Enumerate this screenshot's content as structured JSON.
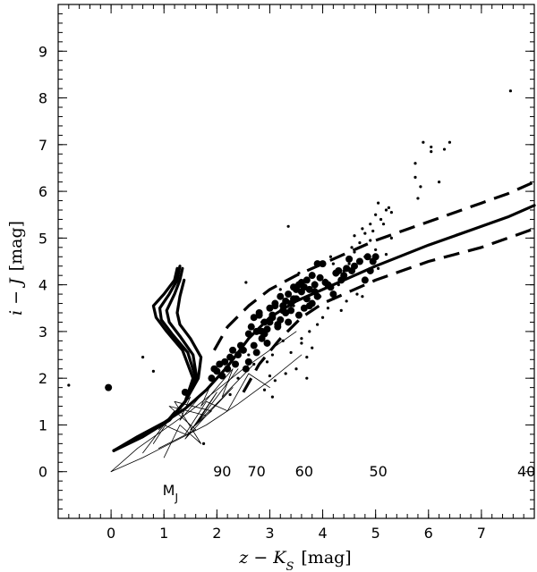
{
  "chart_data": {
    "type": "scatter",
    "title": "",
    "xlabel_main": "z  −  K",
    "xlabel_sub": "S",
    "xlabel_unit": "[mag]",
    "ylabel_main": "i  −  J",
    "ylabel_unit": "[mag]",
    "xlim": [
      -1,
      8
    ],
    "ylim": [
      -1,
      10
    ],
    "xticks": [
      0,
      1,
      2,
      3,
      4,
      5,
      6,
      7
    ],
    "yticks": [
      0,
      1,
      2,
      3,
      4,
      5,
      6,
      7,
      8,
      9
    ],
    "legend": "none",
    "annotations": [
      {
        "text": "M",
        "sub": "J",
        "x": 1.12,
        "y": -0.5
      },
      {
        "text": "90",
        "x": 2.1,
        "y": -0.1
      },
      {
        "text": "70",
        "x": 2.75,
        "y": -0.1
      },
      {
        "text": "60",
        "x": 3.65,
        "y": -0.1
      },
      {
        "text": "50",
        "x": 5.05,
        "y": -0.1
      },
      {
        "text": "40",
        "x": 7.85,
        "y": -0.1
      }
    ],
    "series": [
      {
        "style": "thick-solid",
        "x": [
          0.05,
          0.5,
          1.0,
          1.4,
          1.8,
          2.2,
          2.6,
          3.0,
          3.5,
          4.0,
          4.5,
          5.0,
          6.0,
          7.0,
          7.5,
          8.0
        ],
        "y": [
          0.45,
          0.75,
          1.05,
          1.35,
          1.75,
          2.25,
          2.85,
          3.3,
          3.65,
          3.9,
          4.15,
          4.4,
          4.85,
          5.25,
          5.45,
          5.7
        ]
      },
      {
        "style": "thick-dashed",
        "x": [
          1.95,
          2.2,
          2.6,
          3.0,
          3.5,
          4.0,
          4.5,
          5.0,
          6.0,
          7.0,
          7.5,
          8.0
        ],
        "y": [
          2.6,
          3.1,
          3.55,
          3.9,
          4.2,
          4.45,
          4.7,
          4.95,
          5.35,
          5.75,
          5.95,
          6.2
        ]
      },
      {
        "style": "thick-dashed",
        "x": [
          2.5,
          2.8,
          3.2,
          3.6,
          4.0,
          4.5,
          5.0,
          6.0,
          7.0,
          7.5,
          8.0
        ],
        "y": [
          1.7,
          2.3,
          2.85,
          3.3,
          3.6,
          3.85,
          4.1,
          4.5,
          4.8,
          5.0,
          5.2
        ]
      },
      {
        "style": "thick-solid",
        "x": [
          0.05,
          0.6,
          1.1,
          1.4,
          1.55,
          1.35,
          1.05,
          0.85,
          0.8,
          1.0,
          1.2,
          1.25
        ],
        "y": [
          0.45,
          0.75,
          1.1,
          1.5,
          2.0,
          2.6,
          3.0,
          3.3,
          3.55,
          3.8,
          4.1,
          4.35
        ]
      },
      {
        "style": "thick-solid",
        "x": [
          0.05,
          0.6,
          1.1,
          1.4,
          1.6,
          1.45,
          1.15,
          0.95,
          0.92,
          1.1,
          1.25,
          1.3
        ],
        "y": [
          0.45,
          0.75,
          1.1,
          1.5,
          2.0,
          2.55,
          2.95,
          3.25,
          3.5,
          3.8,
          4.1,
          4.4
        ]
      },
      {
        "style": "thick-solid",
        "x": [
          0.05,
          0.6,
          1.1,
          1.4,
          1.62,
          1.55,
          1.3,
          1.1,
          1.05,
          1.2,
          1.3,
          1.35
        ],
        "y": [
          0.45,
          0.75,
          1.1,
          1.5,
          2.0,
          2.5,
          2.9,
          3.2,
          3.45,
          3.8,
          4.1,
          4.35
        ]
      },
      {
        "style": "thick-solid",
        "x": [
          0.05,
          0.6,
          1.1,
          1.4,
          1.65,
          1.7,
          1.5,
          1.3,
          1.25,
          1.3,
          1.38
        ],
        "y": [
          0.45,
          0.75,
          1.1,
          1.5,
          2.0,
          2.45,
          2.85,
          3.15,
          3.4,
          3.75,
          4.1
        ]
      },
      {
        "style": "thin-solid",
        "x": [
          0.0,
          0.5,
          1.0,
          1.5,
          2.0,
          2.5,
          3.0,
          3.5
        ],
        "y": [
          0.0,
          0.5,
          0.9,
          1.3,
          1.75,
          2.2,
          2.6,
          3.0
        ]
      },
      {
        "style": "thin-solid",
        "x": [
          0.0,
          0.6,
          1.2,
          1.8,
          2.4,
          3.0,
          3.6
        ],
        "y": [
          0.0,
          0.3,
          0.65,
          1.0,
          1.45,
          1.95,
          2.5
        ]
      },
      {
        "style": "thin-solid",
        "x": [
          0.6,
          1.0,
          1.4,
          1.8,
          2.2,
          2.6,
          3.0
        ],
        "y": [
          0.4,
          1.0,
          0.8,
          1.5,
          1.3,
          2.1,
          1.8
        ]
      },
      {
        "style": "thin-solid",
        "x": [
          0.8,
          1.2,
          0.9,
          1.5,
          1.3,
          1.9,
          1.7,
          2.3,
          2.1,
          2.7
        ],
        "y": [
          0.6,
          1.3,
          0.9,
          1.6,
          1.1,
          1.9,
          1.4,
          2.2,
          1.6,
          2.3
        ]
      },
      {
        "style": "thin-solid",
        "x": [
          0.9,
          1.6,
          1.1,
          1.8,
          1.4,
          2.0,
          1.6,
          2.4
        ],
        "y": [
          0.5,
          0.9,
          1.4,
          1.2,
          0.7,
          1.7,
          1.0,
          2.2
        ]
      },
      {
        "style": "thin-solid",
        "x": [
          1.0,
          1.3,
          1.7,
          1.2,
          1.9,
          1.5,
          2.3,
          1.8
        ],
        "y": [
          0.3,
          1.0,
          0.6,
          1.5,
          1.3,
          0.9,
          1.8,
          1.2
        ]
      },
      {
        "style": "large-points",
        "x": [
          1.4,
          1.9,
          1.95,
          2.0,
          2.05,
          2.1,
          2.15,
          2.2,
          2.25,
          2.3,
          2.35,
          2.4,
          2.45,
          2.5,
          2.55,
          2.6,
          2.65,
          2.7,
          2.75,
          2.8,
          2.85,
          2.9,
          2.95,
          3.0,
          3.05,
          3.1,
          3.15,
          3.2,
          3.25,
          3.3,
          3.35,
          3.4,
          3.45,
          3.5,
          3.55,
          3.6,
          3.65,
          3.7,
          3.75,
          3.8,
          3.85,
          3.9,
          3.95,
          4.0,
          4.1,
          4.2,
          4.3,
          4.4,
          4.5,
          4.6,
          4.7,
          4.8,
          4.85,
          4.9,
          4.95,
          5.0,
          2.6,
          2.7,
          2.8,
          2.9,
          3.0,
          3.1,
          3.2,
          3.3,
          3.4,
          3.5,
          3.6,
          3.7,
          3.8,
          3.9,
          2.75,
          2.85,
          2.95,
          3.05,
          3.15,
          3.25,
          3.35,
          3.45,
          3.55,
          3.65,
          3.75,
          3.85,
          4.05,
          4.15,
          4.25,
          4.35,
          4.45,
          4.55,
          -0.05
        ],
        "y": [
          1.7,
          2.0,
          2.2,
          2.15,
          2.3,
          2.05,
          2.35,
          2.2,
          2.45,
          2.6,
          2.3,
          2.5,
          2.7,
          2.6,
          2.2,
          2.95,
          3.1,
          3.3,
          3.0,
          3.4,
          2.85,
          3.2,
          3.05,
          3.5,
          3.35,
          3.6,
          3.15,
          3.75,
          3.55,
          3.4,
          3.8,
          3.6,
          3.95,
          3.7,
          4.0,
          3.85,
          3.5,
          4.1,
          3.9,
          4.2,
          4.0,
          4.45,
          4.15,
          4.45,
          4.0,
          3.8,
          4.3,
          4.2,
          4.55,
          4.4,
          4.5,
          4.1,
          4.6,
          4.3,
          4.5,
          4.6,
          2.35,
          2.7,
          3.35,
          2.95,
          3.2,
          3.55,
          3.25,
          3.65,
          3.45,
          3.9,
          4.05,
          3.7,
          3.6,
          3.75,
          2.55,
          3.0,
          2.75,
          3.3,
          3.1,
          3.45,
          3.2,
          3.7,
          3.35,
          3.95,
          3.55,
          3.85,
          4.05,
          3.95,
          4.25,
          4.1,
          4.35,
          4.3,
          1.8
        ]
      },
      {
        "style": "small-points",
        "x": [
          -0.8,
          0.6,
          0.8,
          1.75,
          2.25,
          2.4,
          2.7,
          2.9,
          3.0,
          3.05,
          3.1,
          3.3,
          3.4,
          3.5,
          3.6,
          3.7,
          3.75,
          3.8,
          3.9,
          4.0,
          4.1,
          4.2,
          4.3,
          4.4,
          4.5,
          4.6,
          4.7,
          4.8,
          4.9,
          5.0,
          5.1,
          5.2,
          5.3,
          4.55,
          4.6,
          4.75,
          4.9,
          5.05,
          5.15,
          5.25,
          5.2,
          5.3,
          5.8,
          5.75,
          5.85,
          5.9,
          6.05,
          6.2,
          6.4,
          7.55,
          3.85,
          3.55,
          3.2,
          2.85,
          3.45,
          3.95,
          4.15,
          4.35,
          4.65,
          3.25,
          2.6,
          2.95,
          3.6,
          2.55,
          3.35,
          3.05,
          3.7,
          4.45
        ],
        "y": [
          1.85,
          2.45,
          2.15,
          0.6,
          1.65,
          2.0,
          2.3,
          1.75,
          2.05,
          2.5,
          1.95,
          2.1,
          2.55,
          2.2,
          2.85,
          2.45,
          3.0,
          2.65,
          3.15,
          3.3,
          3.5,
          3.7,
          4.0,
          4.3,
          4.45,
          4.7,
          4.9,
          5.1,
          5.3,
          5.5,
          5.4,
          5.6,
          5.55,
          4.8,
          5.05,
          5.2,
          4.95,
          5.75,
          5.3,
          5.65,
          4.65,
          5.0,
          5.85,
          6.3,
          6.1,
          7.05,
          6.95,
          6.2,
          7.05,
          8.15,
          4.05,
          4.25,
          3.9,
          3.2,
          3.55,
          3.75,
          4.6,
          3.45,
          3.8,
          2.8,
          2.5,
          2.35,
          2.75,
          4.05,
          5.25,
          1.6,
          2.0,
          3.65
        ]
      },
      {
        "style": "small-points",
        "x": [
          4.05,
          4.2,
          4.8,
          5.05,
          6.05,
          6.3,
          5.75,
          5.0,
          4.95,
          4.75
        ],
        "y": [
          4.1,
          4.45,
          4.6,
          4.35,
          6.85,
          6.9,
          6.6,
          4.75,
          5.15,
          3.75
        ]
      }
    ]
  }
}
